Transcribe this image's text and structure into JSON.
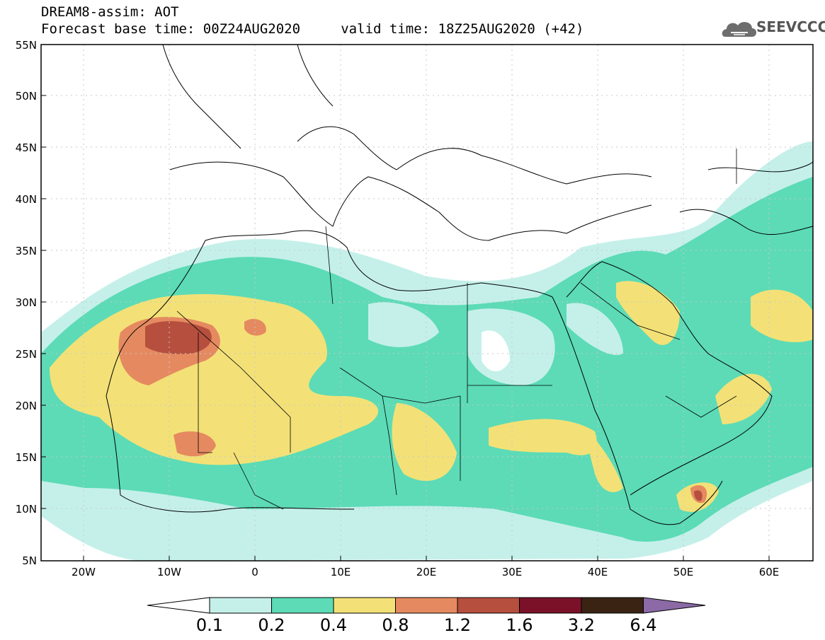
{
  "header": {
    "title_line1": "DREAM8-assim: AOT",
    "title_line2": "Forecast base time: 00Z24AUG2020     valid time: 18Z25AUG2020 (+42)",
    "logo_text": "SEEVCCC",
    "logo_icon": "cloud-logo-icon"
  },
  "map": {
    "lat_labels": [
      "55N",
      "50N",
      "45N",
      "40N",
      "35N",
      "30N",
      "25N",
      "20N",
      "15N",
      "10N",
      "5N"
    ],
    "lon_labels": [
      "20W",
      "10W",
      "0",
      "10E",
      "20E",
      "30E",
      "40E",
      "50E",
      "60E"
    ],
    "lon_range": [
      -25,
      65
    ],
    "lat_range": [
      5,
      55
    ]
  },
  "colorbar": {
    "labels": [
      "0.1",
      "0.2",
      "0.4",
      "0.8",
      "1.2",
      "1.6",
      "3.2",
      "6.4"
    ],
    "colors": {
      "below": "#ffffff",
      "c1": "#c5f0ea",
      "c2": "#5cdbb6",
      "c3": "#f3e177",
      "c4": "#e58a60",
      "c5": "#b64f3e",
      "c6": "#7a1129",
      "c7": "#3a2313",
      "above": "#8b6aa6"
    }
  }
}
